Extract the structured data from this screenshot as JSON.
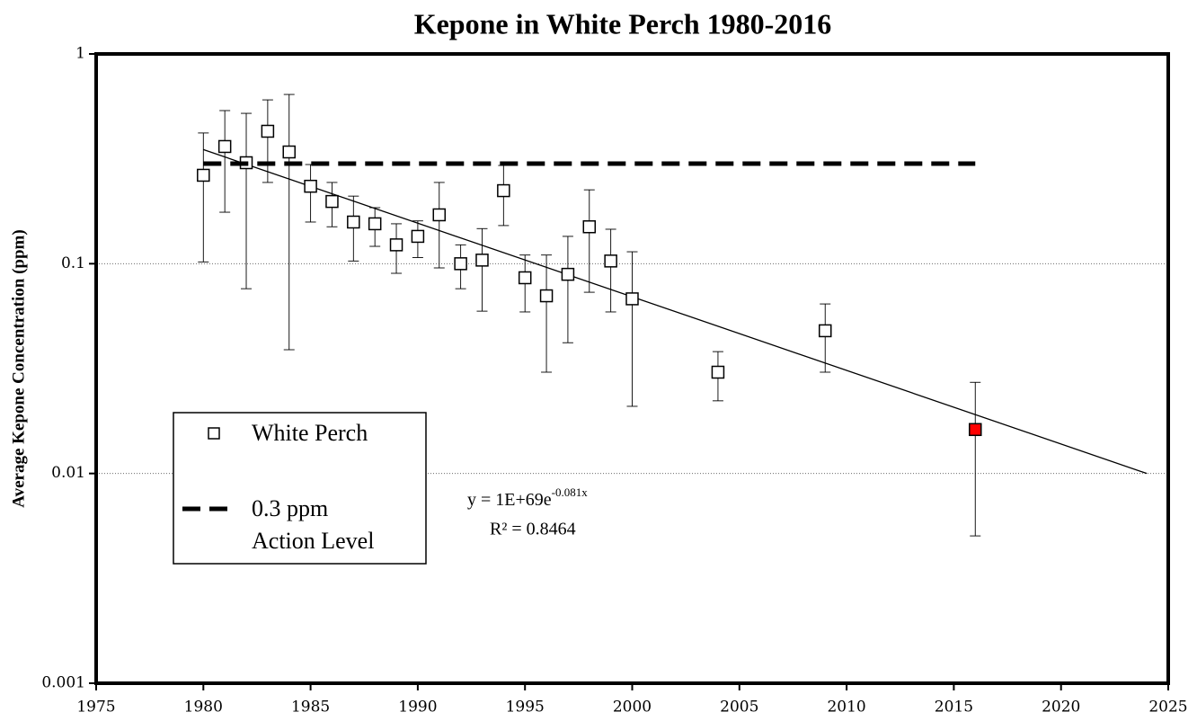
{
  "chart_data": {
    "type": "scatter",
    "title": "Kepone in White Perch 1980-2016",
    "y_label": "Average Kepone Concentration (ppm)",
    "y_scale": "log",
    "xlim": [
      1975,
      2025
    ],
    "xticks": [
      1975,
      1980,
      1985,
      1990,
      1995,
      2000,
      2005,
      2010,
      2015,
      2020,
      2025
    ],
    "ylim": [
      0.001,
      1
    ],
    "yticks": [
      0.001,
      0.01,
      0.1,
      1
    ],
    "grid": true,
    "series": [
      {
        "name": "White Perch",
        "color": "#000000",
        "x": [
          1980,
          1981,
          1982,
          1983,
          1984,
          1985,
          1986,
          1987,
          1988,
          1989,
          1990,
          1991,
          1992,
          1993,
          1994,
          1995,
          1996,
          1997,
          1998,
          1999,
          2000,
          2004,
          2009,
          2016
        ],
        "values": [
          0.264,
          0.362,
          0.303,
          0.428,
          0.341,
          0.234,
          0.198,
          0.158,
          0.155,
          0.123,
          0.135,
          0.171,
          0.1,
          0.104,
          0.223,
          0.0857,
          0.0703,
          0.089,
          0.15,
          0.103,
          0.068,
          0.0304,
          0.0479,
          0.0162
        ],
        "upper": [
          0.42,
          0.537,
          0.521,
          0.604,
          0.641,
          0.297,
          0.244,
          0.21,
          0.185,
          0.155,
          0.16,
          0.244,
          0.123,
          0.147,
          0.294,
          0.11,
          0.11,
          0.135,
          0.225,
          0.146,
          0.114,
          0.0381,
          0.0643,
          0.0272
        ],
        "lower": [
          0.102,
          0.176,
          0.076,
          0.244,
          0.0389,
          0.158,
          0.15,
          0.103,
          0.121,
          0.09,
          0.107,
          0.0955,
          0.076,
          0.0594,
          0.152,
          0.0589,
          0.0304,
          0.042,
          0.0731,
          0.0589,
          0.0209,
          0.0222,
          0.0304,
          0.00504
        ],
        "fills": [
          "#ffffff",
          "#ffffff",
          "#ffffff",
          "#ffffff",
          "#ffffff",
          "#ffffff",
          "#ffffff",
          "#ffffff",
          "#ffffff",
          "#ffffff",
          "#ffffff",
          "#ffffff",
          "#ffffff",
          "#ffffff",
          "#ffffff",
          "#ffffff",
          "#ffffff",
          "#ffffff",
          "#ffffff",
          "#ffffff",
          "#ffffff",
          "#ffffff",
          "#ffffff",
          "#ff0000"
        ]
      },
      {
        "name": [
          "0.3 ppm",
          "Action Level"
        ],
        "color": "#000000",
        "dashed": true,
        "x": [
          1980,
          2016
        ],
        "values": [
          0.3,
          0.3
        ]
      }
    ],
    "trendline": {
      "x": [
        1980,
        2024
      ],
      "values": [
        0.35,
        0.01
      ],
      "color": "#000000"
    },
    "equation": {
      "base": "y = 1E+69e",
      "exponent": "-0.081x"
    },
    "r_squared": "R² = 0.8464"
  }
}
